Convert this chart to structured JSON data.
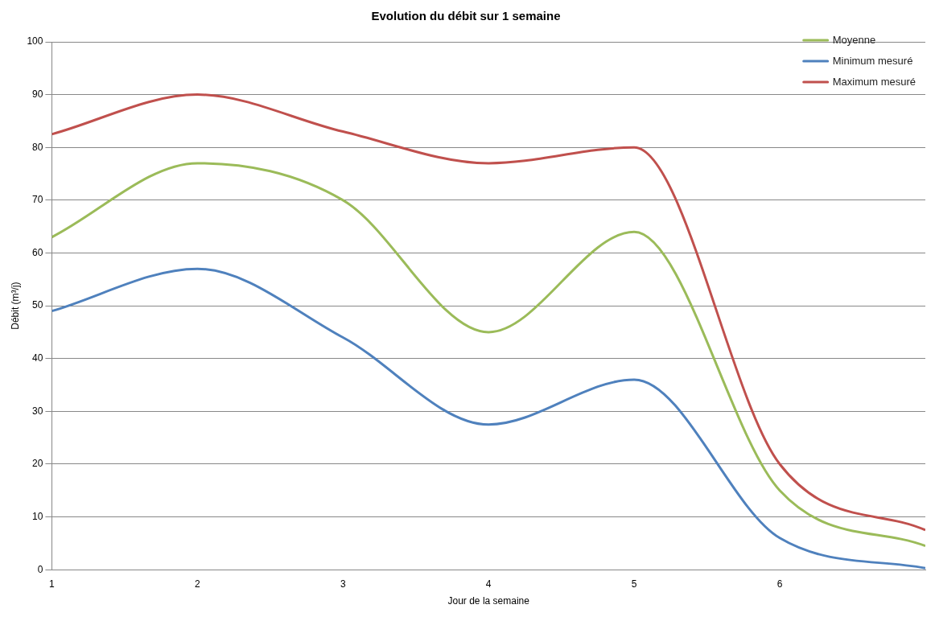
{
  "chart_data": {
    "type": "line",
    "title": "Evolution du débit sur 1 semaine",
    "xlabel": "Jour de la semaine",
    "ylabel": "Débit (m³/j)",
    "x": [
      1,
      2,
      3,
      4,
      5,
      6,
      7
    ],
    "series": [
      {
        "name": "Moyenne",
        "color": "#9bbb59",
        "values": [
          63,
          77,
          70,
          45,
          64,
          15,
          4.5
        ]
      },
      {
        "name": "Minimum mesuré",
        "color": "#4f81bd",
        "values": [
          49,
          57,
          44,
          27.5,
          36,
          6,
          0.3
        ]
      },
      {
        "name": "Maximum mesuré",
        "color": "#c0504d",
        "values": [
          82.5,
          90,
          83,
          77,
          80,
          20,
          7.5
        ]
      }
    ],
    "xlim": [
      1,
      7
    ],
    "xticks": [
      1,
      2,
      3,
      4,
      5,
      6
    ],
    "ylim": [
      0,
      100
    ],
    "yticks": [
      0,
      10,
      20,
      30,
      40,
      50,
      60,
      70,
      80,
      90,
      100
    ],
    "grid": "y",
    "legend": "top right",
    "marker": "none",
    "line_style": "solid"
  }
}
